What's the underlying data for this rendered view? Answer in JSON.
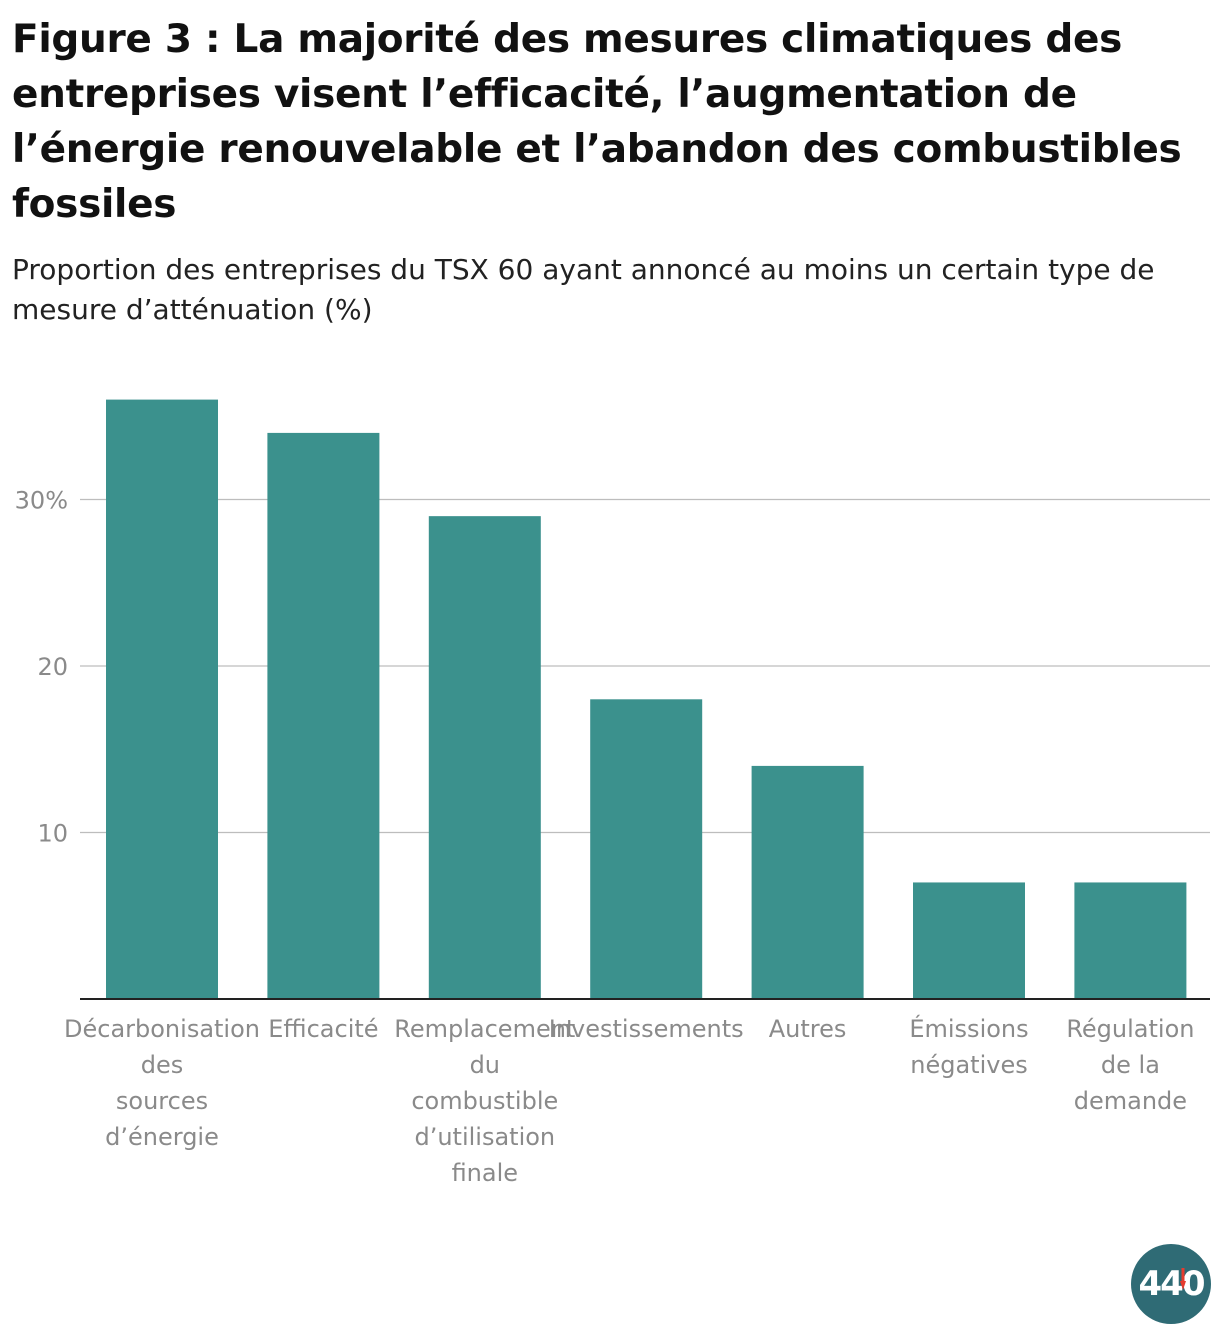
{
  "header": {
    "title": "Figure 3 : La majorité des mesures climatiques des entreprises visent l’efficacité, l’augmentation de l’énergie renouvelable et l’abandon des combustibles fossiles",
    "subtitle": "Proportion des entreprises du TSX 60 ayant annoncé au moins un certain type de mesure d’atténuation (%)"
  },
  "logo": {
    "text": "440",
    "bg_color": "#2f6b75",
    "accent_color": "#e63b2e"
  },
  "chart_data": {
    "type": "bar",
    "title": "Figure 3 : La majorité des mesures climatiques des entreprises visent l’efficacité, l’augmentation de l’énergie renouvelable et l’abandon des combustibles fossiles",
    "subtitle": "Proportion des entreprises du TSX 60 ayant annoncé au moins un certain type de mesure d’atténuation (%)",
    "categories": [
      [
        "Décarbonisation",
        "des",
        "sources",
        "d’énergie"
      ],
      [
        "Efficacité"
      ],
      [
        "Remplacement",
        "du",
        "combustible",
        "d’utilisation",
        "finale"
      ],
      [
        "Investissements"
      ],
      [
        "Autres"
      ],
      [
        "Émissions",
        "négatives"
      ],
      [
        "Régulation",
        "de la",
        "demande"
      ]
    ],
    "values": [
      36,
      34,
      29,
      18,
      14,
      7,
      7
    ],
    "yticks": [
      10,
      20,
      30
    ],
    "ytick_labels": [
      "10",
      "20",
      "30%"
    ],
    "ylim": [
      0,
      37
    ],
    "xlabel": "",
    "ylabel": "",
    "grid": true,
    "bar_color": "#3b918d"
  }
}
